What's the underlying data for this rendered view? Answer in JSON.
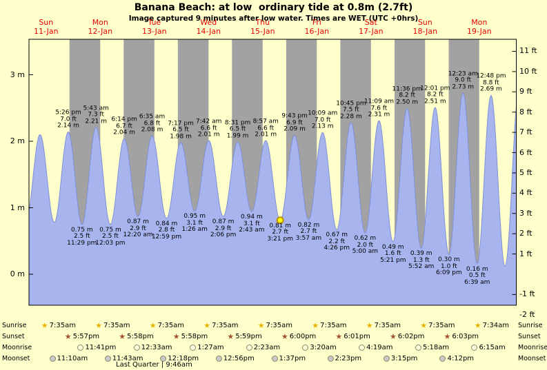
{
  "title": "Banana Beach: at low  ordinary tide at 0.8m (2.7ft)",
  "subtitle": "Image captured 9 minutes after low water. Times are WET (UTC +0hrs)",
  "colors": {
    "background": "#ffffcc",
    "night_band": "#a2a2a2",
    "tide_fill": "#a7b4ee",
    "tide_stroke": "#7f90d8",
    "day_label": "#e60000",
    "current_marker_fill": "#ffff00",
    "current_marker_ring": "#c08f00",
    "sunrise_star": "#e6b400",
    "sunset_star": "#a0522d",
    "moonrise_circle": "#ffffdd",
    "moonset_circle": "#c8c8c8"
  },
  "chart_data": {
    "type": "area",
    "title": "Banana Beach: at low  ordinary tide at 0.8m (2.7ft)",
    "x_axis": {
      "start": "Sun 11-Jan 00:00",
      "days_shown": 9
    },
    "y_axis": {
      "left_unit": "m",
      "left_ticks_m": [
        3,
        2,
        1,
        0
      ],
      "right_unit": "ft",
      "right_ticks_ft": [
        11,
        10,
        9,
        8,
        7,
        6,
        5,
        4,
        3,
        2,
        1,
        -1,
        -2
      ]
    },
    "day_labels": [
      {
        "dow": "Sun",
        "date": "11-Jan"
      },
      {
        "dow": "Mon",
        "date": "12-Jan"
      },
      {
        "dow": "Tue",
        "date": "13-Jan"
      },
      {
        "dow": "Wed",
        "date": "14-Jan"
      },
      {
        "dow": "Thu",
        "date": "15-Jan"
      },
      {
        "dow": "Fri",
        "date": "16-Jan"
      },
      {
        "dow": "Sat",
        "date": "17-Jan"
      },
      {
        "dow": "Sun",
        "date": "18-Jan"
      },
      {
        "dow": "Mon",
        "date": "19-Jan"
      }
    ],
    "tide_events": [
      {
        "kind": "high",
        "day": 0,
        "time": "5:26 pm",
        "ft": "7.0 ft",
        "m": "2.14 m",
        "height_m": 2.14
      },
      {
        "kind": "low",
        "day": 0,
        "time": "11:29 pm",
        "ft": "2.5 ft",
        "m": "0.75 m",
        "height_m": 0.75
      },
      {
        "kind": "high",
        "day": 1,
        "time": "5:43 am",
        "ft": "7.3 ft",
        "m": "2.21 m",
        "height_m": 2.21
      },
      {
        "kind": "low",
        "day": 1,
        "time": "12:03 pm",
        "ft": "2.5 ft",
        "m": "0.75 m",
        "height_m": 0.75
      },
      {
        "kind": "high",
        "day": 1,
        "time": "6:14 pm",
        "ft": "6.7 ft",
        "m": "2.04 m",
        "height_m": 2.04
      },
      {
        "kind": "low",
        "day": 2,
        "time": "12:20 am",
        "ft": "2.9 ft",
        "m": "0.87 m",
        "height_m": 0.87
      },
      {
        "kind": "high",
        "day": 2,
        "time": "6:35 am",
        "ft": "6.8 ft",
        "m": "2.08 m",
        "height_m": 2.08
      },
      {
        "kind": "low",
        "day": 2,
        "time": "12:59 pm",
        "ft": "2.8 ft",
        "m": "0.84 m",
        "height_m": 0.84
      },
      {
        "kind": "high",
        "day": 2,
        "time": "7:17 pm",
        "ft": "6.5 ft",
        "m": "1.98 m",
        "height_m": 1.98
      },
      {
        "kind": "low",
        "day": 3,
        "time": "1:26 am",
        "ft": "3.1 ft",
        "m": "0.95 m",
        "height_m": 0.95
      },
      {
        "kind": "high",
        "day": 3,
        "time": "7:42 am",
        "ft": "6.6 ft",
        "m": "2.01 m",
        "height_m": 2.01
      },
      {
        "kind": "low",
        "day": 3,
        "time": "2:06 pm",
        "ft": "2.9 ft",
        "m": "0.87 m",
        "height_m": 0.87
      },
      {
        "kind": "high",
        "day": 3,
        "time": "8:31 pm",
        "ft": "6.5 ft",
        "m": "1.99 m",
        "height_m": 1.99
      },
      {
        "kind": "low",
        "day": 4,
        "time": "2:43 am",
        "ft": "3.1 ft",
        "m": "0.94 m",
        "height_m": 0.94
      },
      {
        "kind": "high",
        "day": 4,
        "time": "8:57 am",
        "ft": "6.6 ft",
        "m": "2.01 m",
        "height_m": 2.01
      },
      {
        "kind": "low",
        "day": 4,
        "time": "3:21 pm",
        "ft": "2.7 ft",
        "m": "0.81 m",
        "height_m": 0.81,
        "current": true
      },
      {
        "kind": "high",
        "day": 4,
        "time": "9:43 pm",
        "ft": "6.9 ft",
        "m": "2.09 m",
        "height_m": 2.09
      },
      {
        "kind": "low",
        "day": 5,
        "time": "3:57 am",
        "ft": "2.7 ft",
        "m": "0.82 m",
        "height_m": 0.82
      },
      {
        "kind": "high",
        "day": 5,
        "time": "10:09 am",
        "ft": "7.0 ft",
        "m": "2.13 m",
        "height_m": 2.13
      },
      {
        "kind": "low",
        "day": 5,
        "time": "4:26 pm",
        "ft": "2.2 ft",
        "m": "0.67 m",
        "height_m": 0.67
      },
      {
        "kind": "high",
        "day": 5,
        "time": "10:45 pm",
        "ft": "7.5 ft",
        "m": "2.28 m",
        "height_m": 2.28
      },
      {
        "kind": "low",
        "day": 6,
        "time": "5:00 am",
        "ft": "2.0 ft",
        "m": "0.62 m",
        "height_m": 0.62
      },
      {
        "kind": "high",
        "day": 6,
        "time": "11:09 am",
        "ft": "7.6 ft",
        "m": "2.31 m",
        "height_m": 2.31
      },
      {
        "kind": "low",
        "day": 6,
        "time": "5:21 pm",
        "ft": "1.6 ft",
        "m": "0.49 m",
        "height_m": 0.49
      },
      {
        "kind": "high",
        "day": 6,
        "time": "11:36 pm",
        "ft": "8.2 ft",
        "m": "2.50 m",
        "height_m": 2.5
      },
      {
        "kind": "low",
        "day": 7,
        "time": "5:52 am",
        "ft": "1.3 ft",
        "m": "0.39 m",
        "height_m": 0.39
      },
      {
        "kind": "high",
        "day": 7,
        "time": "12:01 pm",
        "ft": "8.2 ft",
        "m": "2.51 m",
        "height_m": 2.51
      },
      {
        "kind": "low",
        "day": 7,
        "time": "6:09 pm",
        "ft": "1.0 ft",
        "m": "0.30 m",
        "height_m": 0.3
      },
      {
        "kind": "high",
        "day": 8,
        "time": "12:23 am",
        "ft": "9.0 ft",
        "m": "2.73 m",
        "height_m": 2.73
      },
      {
        "kind": "low",
        "day": 8,
        "time": "6:39 am",
        "ft": "0.5 ft",
        "m": "0.16 m",
        "height_m": 0.16
      },
      {
        "kind": "high",
        "day": 8,
        "time": "12:48 pm",
        "ft": "8.8 ft",
        "m": "2.69 m",
        "height_m": 2.69
      }
    ]
  },
  "astro": {
    "row_labels": [
      "Sunrise",
      "Sunset",
      "Moonrise",
      "Moonset"
    ],
    "sunrise": [
      {
        "day": 0,
        "time": "7:35am"
      },
      {
        "day": 1,
        "time": "7:35am"
      },
      {
        "day": 2,
        "time": "7:35am"
      },
      {
        "day": 3,
        "time": "7:35am"
      },
      {
        "day": 4,
        "time": "7:35am"
      },
      {
        "day": 5,
        "time": "7:35am"
      },
      {
        "day": 6,
        "time": "7:35am"
      },
      {
        "day": 7,
        "time": "7:35am"
      },
      {
        "day": 8,
        "time": "7:34am"
      }
    ],
    "sunset": [
      {
        "day": 0,
        "time": "5:57pm"
      },
      {
        "day": 1,
        "time": "5:58pm"
      },
      {
        "day": 2,
        "time": "5:58pm"
      },
      {
        "day": 3,
        "time": "5:59pm"
      },
      {
        "day": 4,
        "time": "6:00pm"
      },
      {
        "day": 5,
        "time": "6:01pm"
      },
      {
        "day": 6,
        "time": "6:02pm"
      },
      {
        "day": 7,
        "time": "6:03pm"
      }
    ],
    "moonrise": [
      {
        "day": 0,
        "time": "11:41pm"
      },
      {
        "day": 2,
        "time": "12:33am"
      },
      {
        "day": 3,
        "time": "1:27am"
      },
      {
        "day": 4,
        "time": "2:23am"
      },
      {
        "day": 5,
        "time": "3:20am"
      },
      {
        "day": 6,
        "time": "4:19am"
      },
      {
        "day": 7,
        "time": "5:18am"
      },
      {
        "day": 8,
        "time": "6:15am"
      }
    ],
    "moonset": [
      {
        "day": 0,
        "time": "11:10am"
      },
      {
        "day": 1,
        "time": "11:43am"
      },
      {
        "day": 2,
        "time": "12:18pm"
      },
      {
        "day": 3,
        "time": "12:56pm"
      },
      {
        "day": 4,
        "time": "1:37pm"
      },
      {
        "day": 5,
        "time": "2:23pm"
      },
      {
        "day": 6,
        "time": "3:15pm"
      },
      {
        "day": 7,
        "time": "4:12pm"
      }
    ],
    "phase_note": "Last Quarter | 9:46am"
  }
}
